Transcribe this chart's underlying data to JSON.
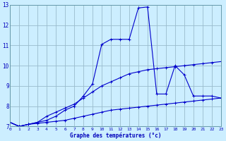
{
  "background_color": "#cceeff",
  "grid_color": "#99bbcc",
  "line_color": "#0000cc",
  "xlabel": "Graphe des températures (°c)",
  "xlim": [
    0,
    23
  ],
  "ylim": [
    7,
    13
  ],
  "yticks": [
    7,
    8,
    9,
    10,
    11,
    12,
    13
  ],
  "xtick_labels": [
    "0",
    "1",
    "2",
    "3",
    "4",
    "5",
    "6",
    "7",
    "8",
    "9",
    "10",
    "11",
    "12",
    "13",
    "14",
    "15",
    "16",
    "17",
    "18",
    "19",
    "20",
    "21",
    "22",
    "23"
  ],
  "series1_x": [
    0,
    1,
    2,
    3,
    4,
    5,
    6,
    7,
    8,
    9,
    10,
    11,
    12,
    13,
    14,
    15,
    16,
    17,
    18,
    19,
    20,
    21,
    22,
    23
  ],
  "series1_y": [
    7.2,
    7.0,
    7.1,
    7.15,
    7.2,
    7.25,
    7.3,
    7.4,
    7.5,
    7.6,
    7.7,
    7.8,
    7.85,
    7.9,
    7.95,
    8.0,
    8.05,
    8.1,
    8.15,
    8.2,
    8.25,
    8.3,
    8.35,
    8.4
  ],
  "series2_x": [
    0,
    1,
    2,
    3,
    4,
    5,
    6,
    7,
    8,
    9,
    10,
    11,
    12,
    13,
    14,
    15,
    16,
    17,
    18,
    19,
    20,
    21,
    22,
    23
  ],
  "series2_y": [
    7.2,
    7.0,
    7.1,
    7.2,
    7.5,
    7.7,
    7.9,
    8.1,
    8.4,
    8.7,
    9.0,
    9.2,
    9.4,
    9.6,
    9.7,
    9.8,
    9.85,
    9.9,
    9.95,
    10.0,
    10.05,
    10.1,
    10.15,
    10.2
  ],
  "series3_x": [
    0,
    1,
    2,
    3,
    4,
    5,
    6,
    7,
    8,
    9,
    10,
    11,
    12,
    13,
    14,
    15,
    16,
    17,
    18,
    19,
    20,
    21,
    22,
    23
  ],
  "series3_y": [
    7.2,
    7.0,
    7.1,
    7.2,
    7.3,
    7.5,
    7.8,
    8.0,
    8.5,
    9.1,
    11.05,
    11.3,
    11.3,
    11.3,
    12.85,
    12.9,
    8.6,
    8.6,
    10.0,
    9.55,
    8.5,
    8.5,
    8.5,
    8.4
  ]
}
